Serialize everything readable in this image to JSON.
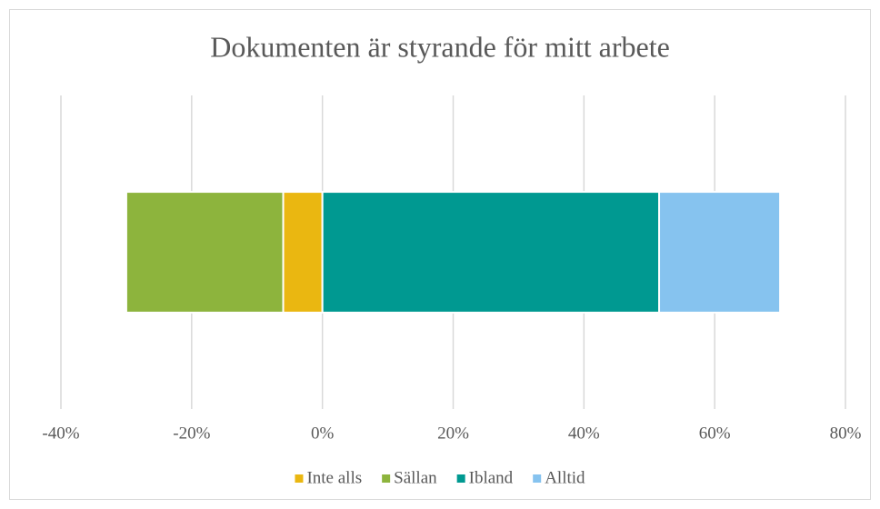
{
  "chart_data": {
    "type": "bar",
    "orientation": "horizontal",
    "title": "Dokumenten är styrande för mitt arbete",
    "categories": [
      null
    ],
    "series": [
      {
        "name": "Inte alls",
        "color": "#eab711",
        "values": [
          -6
        ]
      },
      {
        "name": "Sällan",
        "color": "#8db43d",
        "values": [
          -24
        ]
      },
      {
        "name": "Ibland",
        "color": "#009991",
        "values": [
          51.5
        ]
      },
      {
        "name": "Alltid",
        "color": "#86c3ef",
        "values": [
          18.5
        ]
      }
    ],
    "xlim": [
      -40,
      80
    ],
    "xticks": [
      {
        "value": -40,
        "label": "-40%"
      },
      {
        "value": -20,
        "label": "-20%"
      },
      {
        "value": 0,
        "label": "0%"
      },
      {
        "value": 20,
        "label": "20%"
      },
      {
        "value": 40,
        "label": "40%"
      },
      {
        "value": 60,
        "label": "60%"
      },
      {
        "value": 80,
        "label": "80%"
      }
    ],
    "grid": true,
    "legend": "bottom"
  }
}
